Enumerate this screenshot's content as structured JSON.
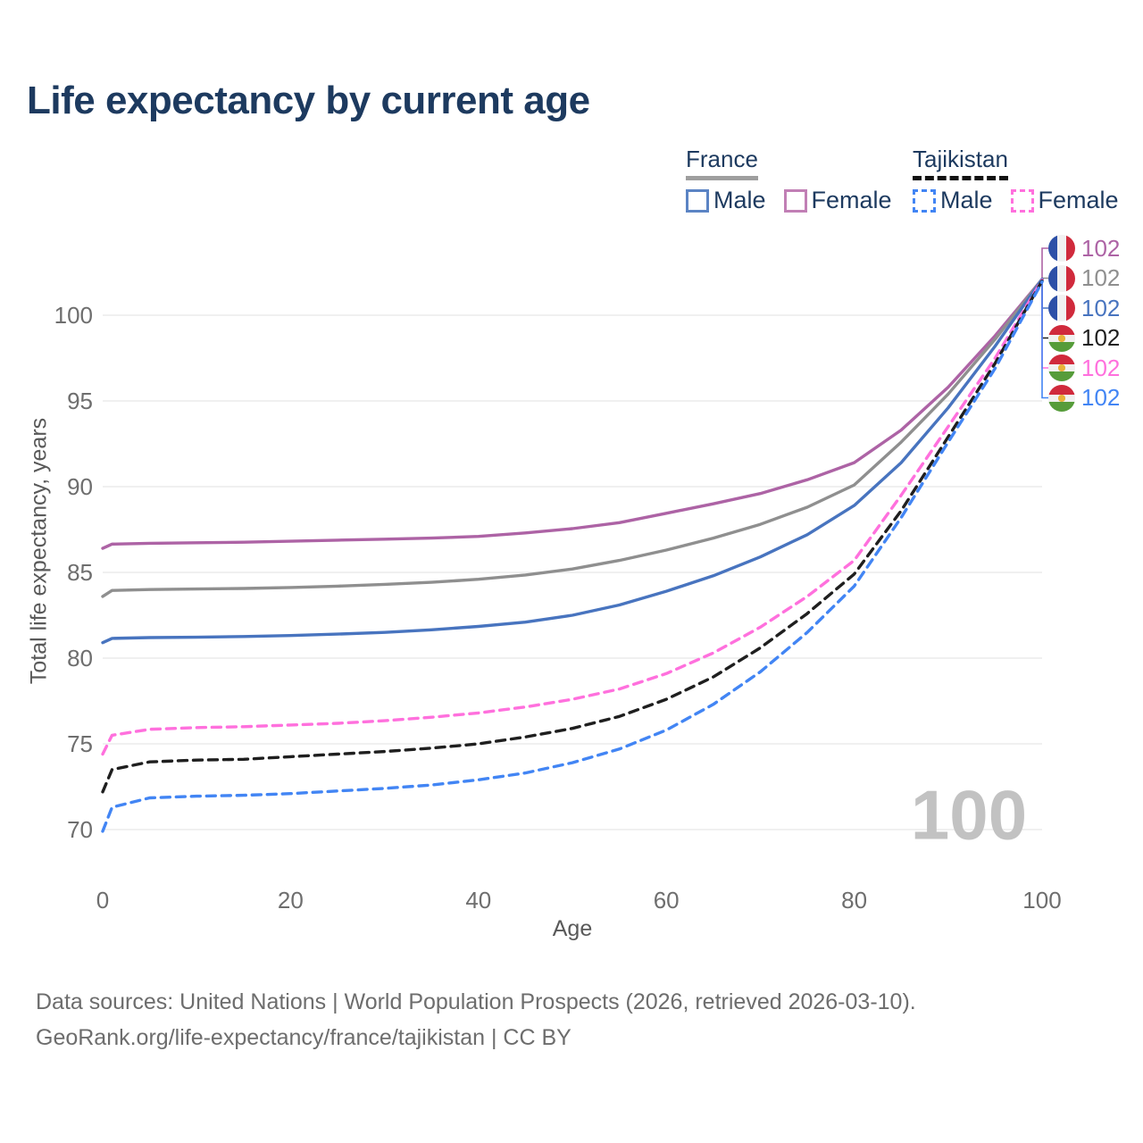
{
  "header": {
    "title": "Life expectancy by current age"
  },
  "theme": {
    "text_navy": "#1d3a5f",
    "grid_color": "#ececec",
    "tick_color": "#6e6e6e"
  },
  "legend": {
    "groups": [
      {
        "name": "France",
        "underline_style": "solid",
        "underline_color": "#9e9e9e",
        "items": [
          {
            "label": "Male",
            "color": "#5b84c4",
            "dashed": false
          },
          {
            "label": "Female",
            "color": "#c17fb5",
            "dashed": false
          }
        ]
      },
      {
        "name": "Tajikistan",
        "underline_style": "dashed",
        "underline_color": "#111111",
        "items": [
          {
            "label": "Male",
            "color": "#4285f4",
            "dashed": true
          },
          {
            "label": "Female",
            "color": "#ff70dd",
            "dashed": true
          }
        ]
      }
    ]
  },
  "chart_data": {
    "type": "line",
    "title": "Life expectancy by current age",
    "xlabel": "Age",
    "ylabel": "Total life expectancy, years",
    "xlim": [
      0,
      100
    ],
    "ylim": [
      69,
      103
    ],
    "xticks": [
      0,
      20,
      40,
      60,
      80,
      100
    ],
    "yticks": [
      70,
      75,
      80,
      85,
      90,
      95,
      100
    ],
    "grid": "horizontal",
    "legend_position": "top-right",
    "age_watermark": "100",
    "x": [
      0,
      1,
      5,
      10,
      15,
      20,
      25,
      30,
      35,
      40,
      45,
      50,
      55,
      60,
      65,
      70,
      75,
      80,
      85,
      90,
      95,
      100
    ],
    "series": [
      {
        "name": "France Female",
        "country": "France",
        "sex": "Female",
        "color": "#ad63a5",
        "dashed": false,
        "values": [
          86.4,
          86.65,
          86.7,
          86.73,
          86.76,
          86.82,
          86.88,
          86.94,
          87.0,
          87.1,
          87.3,
          87.55,
          87.9,
          88.45,
          89.0,
          89.6,
          90.4,
          91.4,
          93.3,
          95.8,
          98.8,
          102.1
        ]
      },
      {
        "name": "France Both sexes",
        "country": "France",
        "sex": "Both",
        "color": "#8f8f8f",
        "dashed": false,
        "values": [
          83.6,
          83.95,
          84.0,
          84.03,
          84.06,
          84.12,
          84.2,
          84.3,
          84.42,
          84.6,
          84.85,
          85.2,
          85.7,
          86.3,
          87.0,
          87.8,
          88.8,
          90.1,
          92.6,
          95.4,
          98.6,
          102.1
        ]
      },
      {
        "name": "France Male",
        "country": "France",
        "sex": "Male",
        "color": "#4874bf",
        "dashed": false,
        "values": [
          80.9,
          81.15,
          81.2,
          81.22,
          81.26,
          81.32,
          81.4,
          81.5,
          81.65,
          81.85,
          82.1,
          82.5,
          83.1,
          83.9,
          84.8,
          85.9,
          87.2,
          88.9,
          91.4,
          94.6,
          98.2,
          102.1
        ]
      },
      {
        "name": "Tajikistan Female",
        "country": "Tajikistan",
        "sex": "Female",
        "color": "#ff70dd",
        "dashed": true,
        "values": [
          74.4,
          75.5,
          75.85,
          75.95,
          76.0,
          76.1,
          76.2,
          76.35,
          76.55,
          76.8,
          77.15,
          77.6,
          78.2,
          79.1,
          80.3,
          81.8,
          83.6,
          85.7,
          89.5,
          93.5,
          97.5,
          102.05
        ]
      },
      {
        "name": "Tajikistan Both sexes",
        "country": "Tajikistan",
        "sex": "Both",
        "color": "#1f1f1f",
        "dashed": true,
        "values": [
          72.2,
          73.5,
          73.95,
          74.05,
          74.1,
          74.25,
          74.4,
          74.55,
          74.75,
          75.0,
          75.4,
          75.9,
          76.6,
          77.6,
          78.9,
          80.6,
          82.6,
          84.9,
          88.6,
          92.9,
          97.2,
          102.0
        ]
      },
      {
        "name": "Tajikistan Male",
        "country": "Tajikistan",
        "sex": "Male",
        "color": "#4285f4",
        "dashed": true,
        "values": [
          69.9,
          71.3,
          71.85,
          71.95,
          72.0,
          72.1,
          72.25,
          72.4,
          72.6,
          72.9,
          73.3,
          73.9,
          74.7,
          75.8,
          77.3,
          79.2,
          81.5,
          84.2,
          88.2,
          92.6,
          96.9,
          101.95
        ]
      }
    ],
    "end_labels": [
      {
        "value": "102",
        "flag": "france",
        "color": "#ad63a5"
      },
      {
        "value": "102",
        "flag": "france",
        "color": "#8f8f8f"
      },
      {
        "value": "102",
        "flag": "france",
        "color": "#4874bf"
      },
      {
        "value": "102",
        "flag": "tajikistan",
        "color": "#1f1f1f"
      },
      {
        "value": "102",
        "flag": "tajikistan",
        "color": "#ff70dd"
      },
      {
        "value": "102",
        "flag": "tajikistan",
        "color": "#4285f4"
      }
    ]
  },
  "footer": {
    "line1": "Data sources: United Nations | World Population Prospects (2026, retrieved 2026-03-10).",
    "line2": "GeoRank.org/life-expectancy/france/tajikistan | CC BY"
  }
}
